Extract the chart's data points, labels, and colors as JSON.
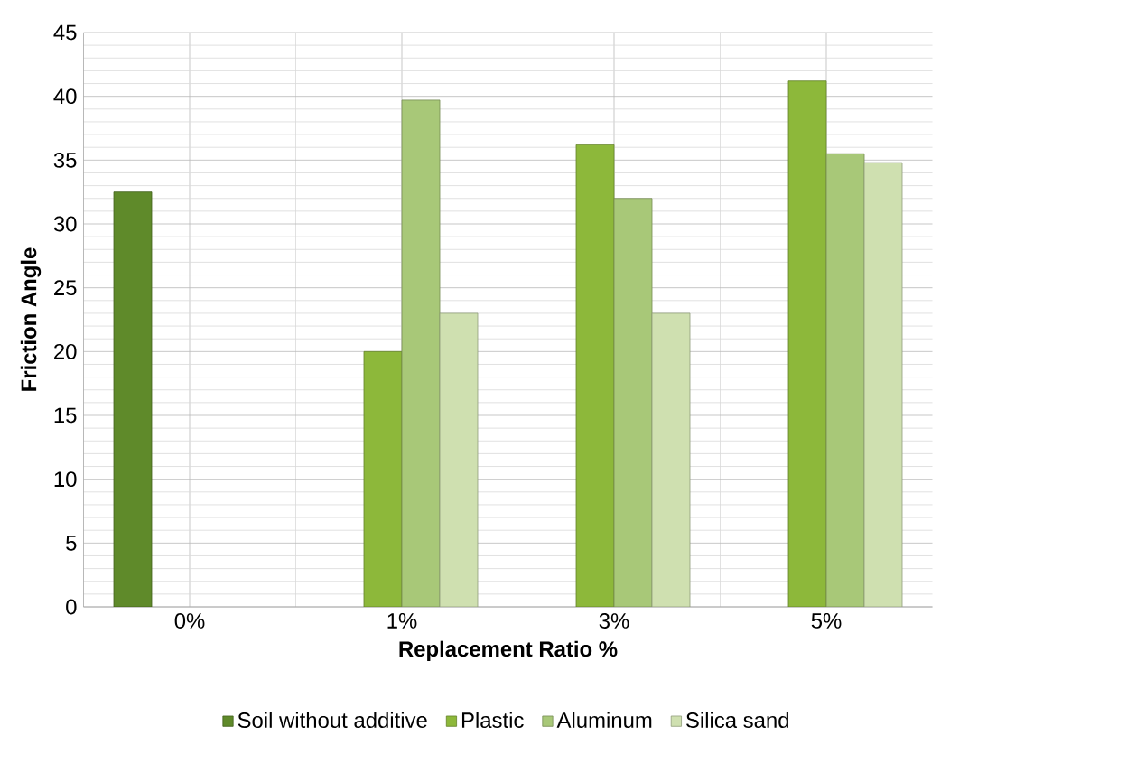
{
  "chart_data": {
    "type": "bar",
    "xlabel": "Replacement Ratio %",
    "ylabel": "Friction Angle",
    "categories": [
      "0%",
      "1%",
      "3%",
      "5%"
    ],
    "series": [
      {
        "name": "Soil without additive",
        "color": "#5f8a2a",
        "values": [
          32.5,
          null,
          null,
          null
        ]
      },
      {
        "name": "Plastic",
        "color": "#8db83a",
        "values": [
          null,
          20,
          36.2,
          41.2
        ]
      },
      {
        "name": "Aluminum",
        "color": "#a8c878",
        "values": [
          null,
          39.7,
          32,
          35.5
        ]
      },
      {
        "name": "Silica sand",
        "color": "#cfe0b0",
        "values": [
          null,
          23,
          23,
          34.8
        ]
      }
    ],
    "ylim": [
      0,
      45
    ],
    "yticks": [
      0,
      5,
      10,
      15,
      20,
      25,
      30,
      35,
      40,
      45
    ],
    "grid": true,
    "legend": "bottom"
  }
}
